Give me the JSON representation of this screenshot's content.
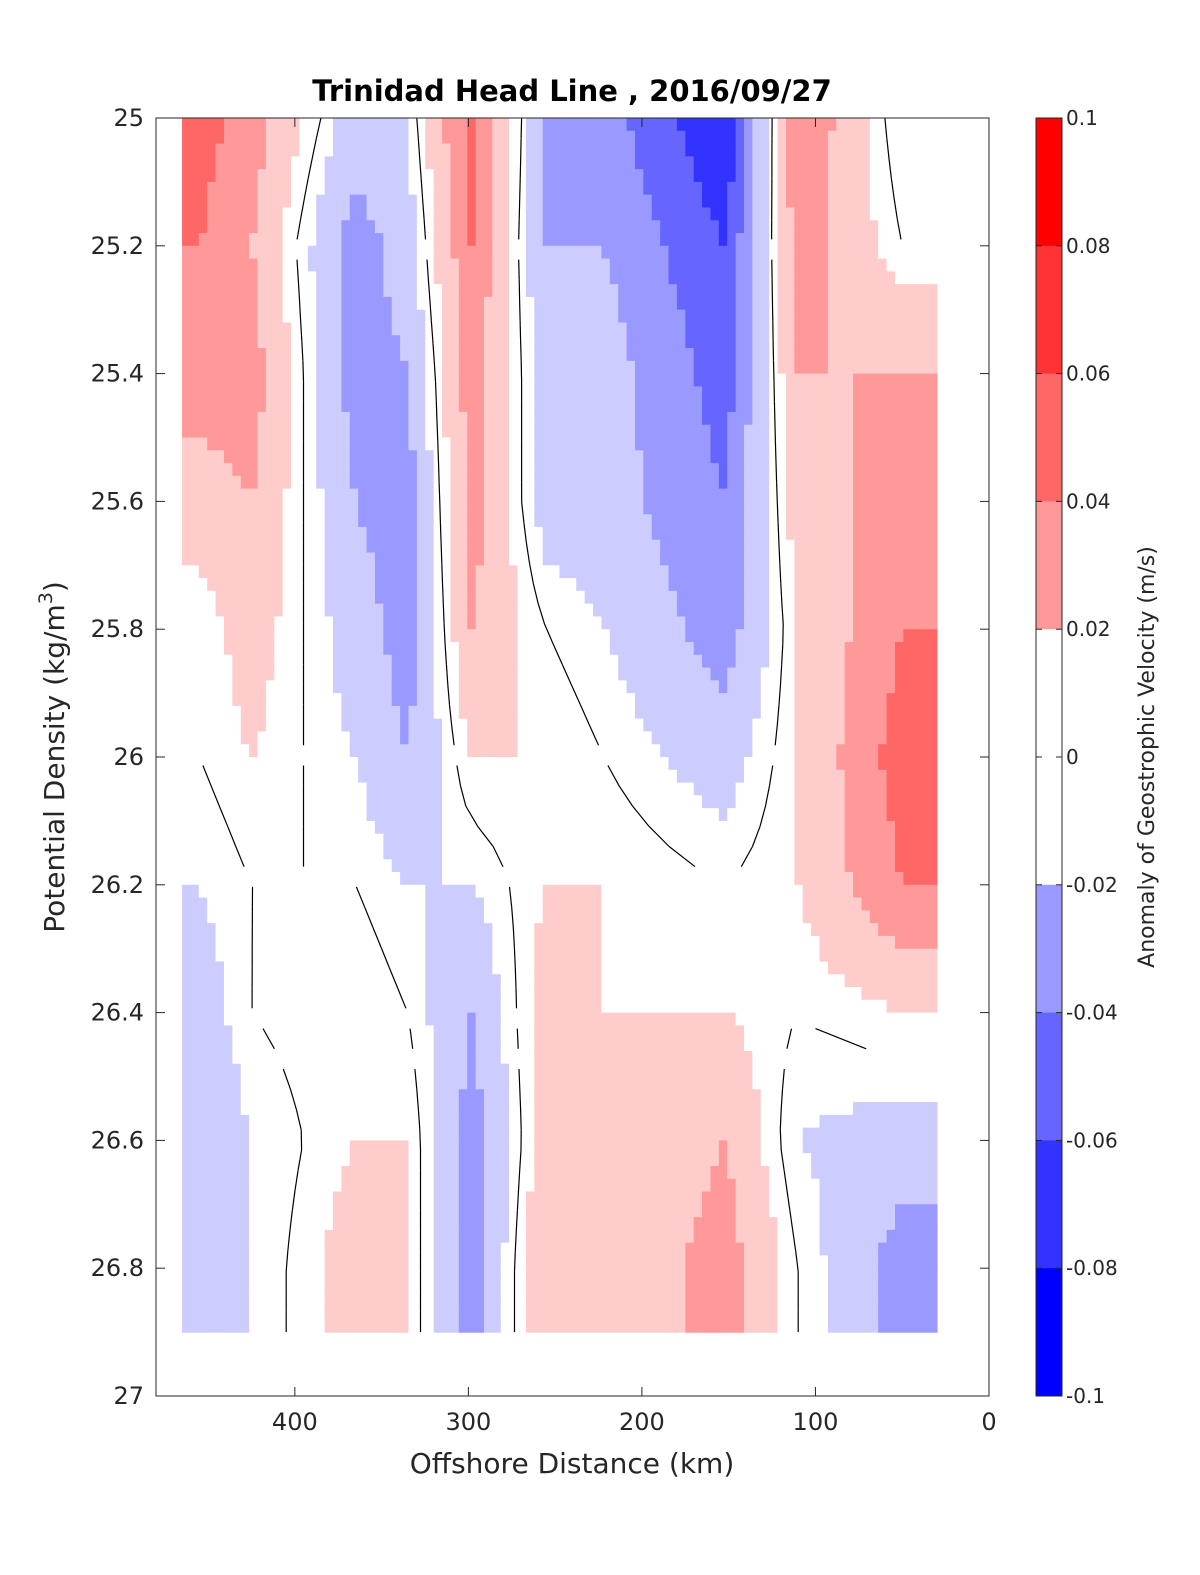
{
  "chart_data": {
    "type": "heatmap",
    "subtype": "filled-contour",
    "title": "Trinidad Head Line , 2016/09/27",
    "xlabel": "Offshore Distance (km)",
    "ylabel": "Potential Density (kg/m",
    "ylabel_sup": "3",
    "ylabel_end": ")",
    "xlim": [
      480,
      0
    ],
    "x_reversed": true,
    "ylim": [
      25,
      27
    ],
    "y_reversed": true,
    "x_ticks": [
      400,
      300,
      200,
      100,
      0
    ],
    "x_tick_labels": [
      "400",
      "300",
      "200",
      "100",
      "0"
    ],
    "y_ticks": [
      25,
      25.2,
      25.4,
      25.6,
      25.8,
      26,
      26.2,
      26.4,
      26.6,
      26.8,
      27
    ],
    "y_tick_labels": [
      "25",
      "25.2",
      "25.4",
      "25.6",
      "25.8",
      "26",
      "26.2",
      "26.4",
      "26.6",
      "26.8",
      "27"
    ],
    "colorbar": {
      "label": "Anomaly of Geostrophic Velocity (m/s)",
      "range": [
        -0.1,
        0.1
      ],
      "step": 0.02,
      "ticks": [
        0.1,
        0.08,
        0.06,
        0.04,
        0.02,
        0,
        -0.02,
        -0.04,
        -0.06,
        -0.08,
        -0.1
      ],
      "tick_labels": [
        "0.1",
        "0.08",
        "0.06",
        "0.04",
        "0.02",
        "0",
        "-0.02",
        "-0.04",
        "-0.06",
        "-0.08",
        "-0.1"
      ],
      "colormap": "blue-white-red",
      "color_positive": "#ff0000",
      "color_negative": "#0000ff",
      "color_zero": "#ffffff"
    },
    "zero_contour_color": "#000000",
    "data_extent": {
      "x": [
        465,
        30
      ],
      "y": [
        25,
        26.9
      ]
    },
    "columns": [
      {
        "x": 455,
        "values": [
          0.06,
          0.05,
          0.04,
          0.02,
          0.0,
          0.0,
          -0.01,
          -0.02,
          -0.03,
          -0.03
        ]
      },
      {
        "x": 425,
        "values": [
          0.04,
          0.03,
          0.04,
          0.03,
          0.02,
          0.01,
          0.0,
          0.0,
          -0.01,
          -0.01
        ]
      },
      {
        "x": 365,
        "values": [
          -0.02,
          -0.04,
          -0.04,
          -0.03,
          -0.02,
          -0.01,
          0.0,
          0.01,
          0.01,
          0.02
        ]
      },
      {
        "x": 335,
        "values": [
          -0.01,
          -0.02,
          -0.03,
          -0.04,
          -0.04,
          -0.03,
          -0.01,
          0.0,
          0.01,
          0.01
        ]
      },
      {
        "x": 298,
        "values": [
          0.06,
          0.05,
          0.04,
          0.04,
          0.03,
          0.01,
          -0.01,
          -0.03,
          -0.04,
          -0.04
        ]
      },
      {
        "x": 255,
        "values": [
          -0.03,
          -0.03,
          -0.02,
          -0.02,
          0.0,
          0.01,
          0.01,
          0.02,
          0.02,
          0.03
        ]
      },
      {
        "x": 222,
        "values": [
          -0.04,
          -0.03,
          -0.02,
          -0.02,
          -0.01,
          0.0,
          0.01,
          0.01,
          0.01,
          0.01
        ]
      },
      {
        "x": 152,
        "values": [
          -0.09,
          -0.07,
          -0.06,
          -0.05,
          -0.04,
          -0.02,
          0.0,
          0.01,
          0.03,
          0.04
        ]
      },
      {
        "x": 110,
        "values": [
          0.05,
          0.04,
          0.03,
          0.02,
          0.01,
          0.01,
          0.01,
          0.0,
          -0.01,
          0.0
        ]
      },
      {
        "x": 50,
        "values": [
          -0.01,
          0.0,
          0.03,
          0.04,
          0.05,
          0.06,
          0.05,
          0.01,
          -0.02,
          -0.04
        ]
      }
    ],
    "column_levels": [
      25.0,
      25.2,
      25.4,
      25.6,
      25.8,
      26.0,
      26.2,
      26.4,
      26.6,
      26.8
    ]
  }
}
